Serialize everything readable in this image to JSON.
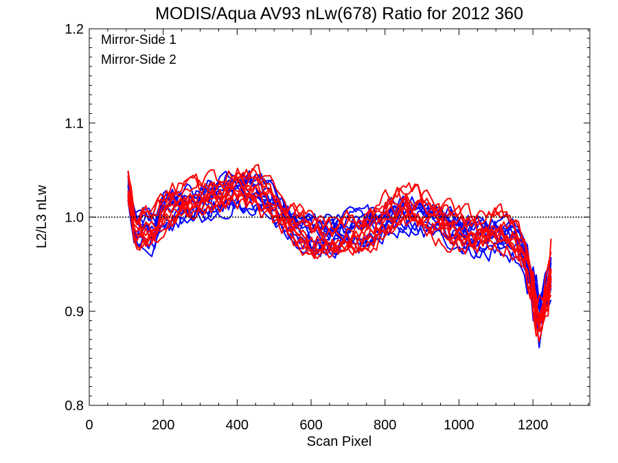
{
  "chart_data": {
    "type": "line",
    "title": "MODIS/Aqua AV93 nLw(678) Ratio for 2012 360",
    "xlabel": "Scan Pixel",
    "ylabel": "L2/L3 nLw",
    "xlim": [
      0,
      1354
    ],
    "ylim": [
      0.8,
      1.2
    ],
    "x_ticks": [
      "0",
      "200",
      "400",
      "600",
      "800",
      "1000",
      "1200"
    ],
    "y_ticks": [
      "0.8",
      "0.9",
      "1.0",
      "1.1",
      "1.2"
    ],
    "reference_line": {
      "y": 1.0,
      "style": "dotted"
    },
    "grid": false,
    "legend_position": "top-left",
    "x_range_of_data": [
      105,
      1250
    ],
    "series": [
      {
        "name": "Mirror-Side 1",
        "color": "#0000ff",
        "line_count": 11,
        "profile": [
          [
            105,
            1.03
          ],
          [
            125,
            0.985
          ],
          [
            150,
            0.99
          ],
          [
            175,
            0.985
          ],
          [
            200,
            1.005
          ],
          [
            250,
            1.01
          ],
          [
            300,
            1.015
          ],
          [
            350,
            1.02
          ],
          [
            400,
            1.03
          ],
          [
            450,
            1.025
          ],
          [
            500,
            1.01
          ],
          [
            550,
            0.99
          ],
          [
            600,
            0.98
          ],
          [
            650,
            0.978
          ],
          [
            700,
            0.983
          ],
          [
            750,
            0.985
          ],
          [
            800,
            0.995
          ],
          [
            850,
            1.005
          ],
          [
            900,
            1.0
          ],
          [
            950,
            0.995
          ],
          [
            1000,
            0.985
          ],
          [
            1050,
            0.98
          ],
          [
            1100,
            0.98
          ],
          [
            1150,
            0.975
          ],
          [
            1175,
            0.96
          ],
          [
            1200,
            0.92
          ],
          [
            1215,
            0.895
          ],
          [
            1230,
            0.905
          ],
          [
            1250,
            0.93
          ]
        ]
      },
      {
        "name": "Mirror-Side 2",
        "color": "#ff0000",
        "line_count": 11,
        "profile": [
          [
            105,
            1.03
          ],
          [
            125,
            0.985
          ],
          [
            150,
            0.99
          ],
          [
            175,
            0.985
          ],
          [
            200,
            1.005
          ],
          [
            250,
            1.015
          ],
          [
            300,
            1.02
          ],
          [
            350,
            1.025
          ],
          [
            400,
            1.03
          ],
          [
            450,
            1.03
          ],
          [
            500,
            1.01
          ],
          [
            550,
            0.99
          ],
          [
            600,
            0.978
          ],
          [
            650,
            0.975
          ],
          [
            700,
            0.98
          ],
          [
            750,
            0.985
          ],
          [
            800,
            1.0
          ],
          [
            850,
            1.01
          ],
          [
            900,
            1.005
          ],
          [
            950,
            0.995
          ],
          [
            1000,
            0.985
          ],
          [
            1050,
            0.98
          ],
          [
            1100,
            0.985
          ],
          [
            1150,
            0.98
          ],
          [
            1175,
            0.96
          ],
          [
            1200,
            0.92
          ],
          [
            1215,
            0.88
          ],
          [
            1230,
            0.9
          ],
          [
            1250,
            0.94
          ]
        ]
      }
    ]
  }
}
